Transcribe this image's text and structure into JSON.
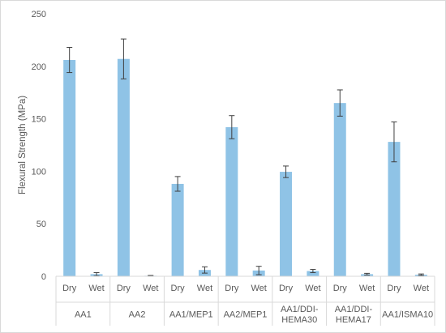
{
  "chart_data": {
    "type": "bar",
    "title": "",
    "xlabel": "",
    "ylabel": "Flexural Strength (MPa)",
    "ylim": [
      0,
      250
    ],
    "yticks": [
      0,
      50,
      100,
      150,
      200,
      250
    ],
    "grid": false,
    "legend": "none",
    "color": "#8fc3e6",
    "error_bar_color": "#404040",
    "groups": [
      {
        "label": [
          "AA1"
        ],
        "bars": [
          {
            "condition": "Dry",
            "value": 206,
            "error": 12
          },
          {
            "condition": "Wet",
            "value": 2,
            "error": 1.5
          }
        ]
      },
      {
        "label": [
          "AA2"
        ],
        "bars": [
          {
            "condition": "Dry",
            "value": 207,
            "error": 19
          },
          {
            "condition": "Wet",
            "value": 0.5,
            "error": 0.3
          }
        ]
      },
      {
        "label": [
          "AA1/MEP1"
        ],
        "bars": [
          {
            "condition": "Dry",
            "value": 88,
            "error": 7
          },
          {
            "condition": "Wet",
            "value": 6,
            "error": 3
          }
        ]
      },
      {
        "label": [
          "AA2/MEP1"
        ],
        "bars": [
          {
            "condition": "Dry",
            "value": 142,
            "error": 11
          },
          {
            "condition": "Wet",
            "value": 5.5,
            "error": 4
          }
        ]
      },
      {
        "label": [
          "AA1/DDI-",
          "HEMA30"
        ],
        "bars": [
          {
            "condition": "Dry",
            "value": 99.5,
            "error": 5.5
          },
          {
            "condition": "Wet",
            "value": 5,
            "error": 1.5
          }
        ]
      },
      {
        "label": [
          "AA1/DDI-",
          "HEMA17"
        ],
        "bars": [
          {
            "condition": "Dry",
            "value": 165,
            "error": 12.5
          },
          {
            "condition": "Wet",
            "value": 2,
            "error": 0.8
          }
        ]
      },
      {
        "label": [
          "AA1/ISMA10"
        ],
        "bars": [
          {
            "condition": "Dry",
            "value": 128,
            "error": 19
          },
          {
            "condition": "Wet",
            "value": 1.5,
            "error": 0.7
          }
        ]
      }
    ]
  }
}
